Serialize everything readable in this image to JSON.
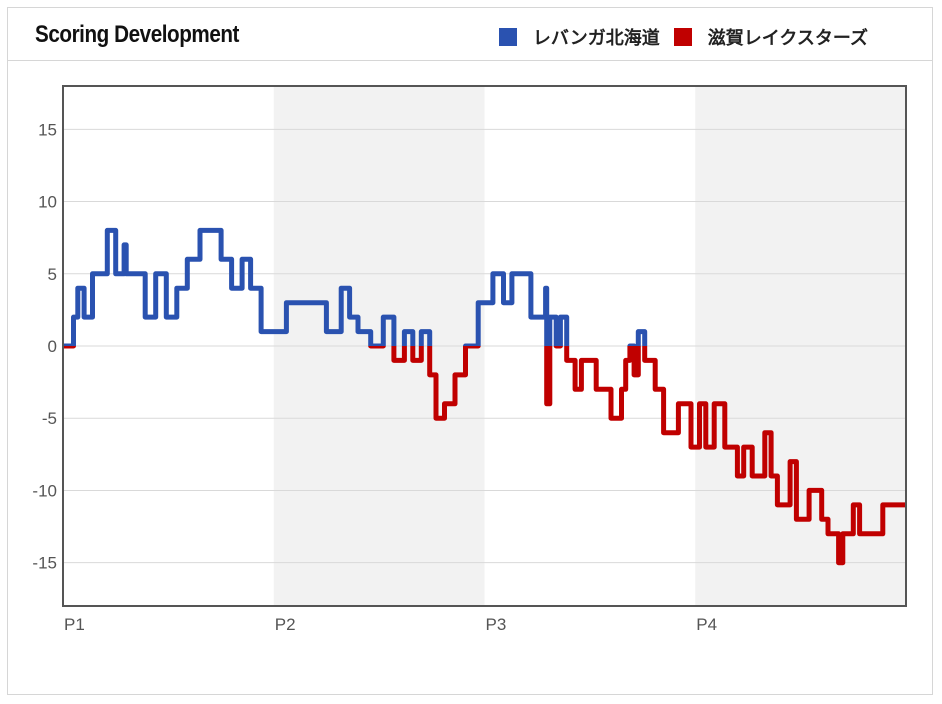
{
  "header": {
    "title": "Scoring Development"
  },
  "colors": {
    "home": "#2a52b0",
    "away": "#c00000",
    "band": "#f2f2f2",
    "grid": "#d9d9d9",
    "frame": "#555555"
  },
  "chart_data": {
    "type": "line",
    "title": "Scoring Development",
    "xlabel": "",
    "ylabel": "",
    "ylim": [
      -18,
      18
    ],
    "yticks": [
      15,
      10,
      5,
      0,
      -5,
      -10,
      -15
    ],
    "xlim": [
      0,
      40
    ],
    "periods": [
      {
        "label": "P1",
        "start": 0
      },
      {
        "label": "P2",
        "start": 10
      },
      {
        "label": "P3",
        "start": 20
      },
      {
        "label": "P4",
        "start": 30
      }
    ],
    "shaded_periods": [
      "P2",
      "P4"
    ],
    "legend": [
      {
        "name": "レバンガ北海道",
        "color": "#2a52b0"
      },
      {
        "name": "滋賀レイクスターズ",
        "color": "#c00000"
      }
    ],
    "legend_position": "top-right",
    "series": {
      "x": [
        0,
        0.5,
        0.7,
        1.0,
        1.4,
        2.1,
        2.5,
        2.9,
        3.0,
        3.3,
        3.9,
        4.4,
        4.9,
        5.4,
        5.9,
        6.5,
        6.6,
        7.5,
        8.0,
        8.5,
        8.9,
        9.4,
        9.6,
        10.6,
        11.6,
        12.5,
        13.2,
        13.6,
        14.0,
        14.6,
        15.2,
        15.7,
        16.2,
        16.6,
        17.0,
        17.4,
        17.7,
        18.1,
        18.6,
        19.1,
        19.7,
        20.4,
        20.9,
        21.3,
        22.2,
        22.9,
        22.95,
        23.1,
        23.4,
        23.6,
        23.9,
        24.3,
        24.6,
        25.3,
        26.0,
        26.5,
        26.7,
        26.9,
        27.1,
        27.3,
        27.4,
        27.6,
        27.9,
        28.1,
        28.2,
        28.5,
        28.8,
        29.2,
        29.8,
        30.2,
        30.5,
        30.9,
        31.4,
        32.0,
        32.3,
        32.7,
        33.3,
        33.6,
        33.9,
        34.5,
        34.8,
        35.4,
        36.0,
        36.3,
        36.8,
        37.0,
        37.5,
        37.8,
        38.1,
        38.5,
        38.9,
        39.4,
        40
      ],
      "margin": [
        0,
        2,
        4,
        2,
        5,
        8,
        5,
        7,
        5,
        5,
        2,
        5,
        2,
        4,
        6,
        8,
        8,
        6,
        4,
        6,
        4,
        1,
        1,
        3,
        3,
        1,
        4,
        2,
        1,
        0,
        2,
        -1,
        1,
        -1,
        1,
        -2,
        -5,
        -4,
        -2,
        0,
        3,
        5,
        3,
        5,
        2,
        4,
        -4,
        2,
        0,
        2,
        -1,
        -3,
        -1,
        -3,
        -5,
        -3,
        -1,
        0,
        -2,
        1,
        1,
        -1,
        -1,
        -3,
        -3,
        -6,
        -6,
        -4,
        -7,
        -4,
        -7,
        -4,
        -7,
        -9,
        -7,
        -9,
        -6,
        -9,
        -11,
        -8,
        -12,
        -10,
        -12,
        -13,
        -15,
        -13,
        -11,
        -13,
        -13,
        -13,
        -11,
        -11,
        -11
      ]
    }
  }
}
